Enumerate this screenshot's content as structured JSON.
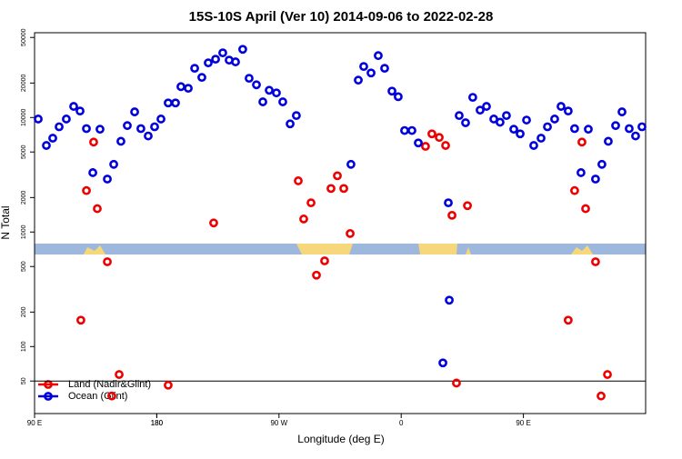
{
  "chart_data": {
    "type": "scatter",
    "title": "15S-10S April (Ver 10)   2014-09-06 to 2022-02-28",
    "xlabel": "Longitude (deg E)",
    "ylabel": "N Total",
    "xlim": [
      90,
      540
    ],
    "ylim": [
      26,
      55000
    ],
    "log_y": true,
    "xticks": [
      {
        "value": 90,
        "label": "90 E"
      },
      180,
      {
        "value": 270,
        "label": "90 W"
      },
      {
        "value": 360,
        "label": "0"
      },
      {
        "value": 450,
        "label": "90 E"
      },
      180.0001
    ],
    "yticks": [
      50,
      100,
      200,
      500,
      1000,
      2000,
      5000,
      10000,
      20000,
      50000
    ],
    "hline": 50,
    "legend": "bottom-left",
    "series": [
      {
        "name": "Land (Nadir&Glint)",
        "color": "#ee0000",
        "x": [
          124.1,
          128.2,
          133.5,
          136.2,
          143.6,
          146.9,
          152.3,
          188.4,
          221.9,
          284.2,
          288.2,
          293.6,
          297.6,
          303.6,
          308.3,
          313,
          317.7,
          322.4,
          377.9,
          382.6,
          388,
          392.7,
          397.4,
          400.7,
          408.8,
          483,
          487.7,
          493.1,
          495.8,
          503.1,
          507.2,
          511.9
        ],
        "values": [
          170,
          2300,
          6100,
          1600,
          550,
          37,
          57,
          46,
          1200,
          2800,
          1300,
          1800,
          420,
          560,
          2400,
          3100,
          2400,
          970,
          5600,
          7200,
          6700,
          5700,
          1400,
          48,
          1700,
          170,
          2300,
          6100,
          1600,
          550,
          37,
          57
        ]
      },
      {
        "name": "Ocean (Glint)",
        "color": "#0000dd",
        "x": [
          92.7,
          98.7,
          103.4,
          108.1,
          113.4,
          118.8,
          123.5,
          128.2,
          132.9,
          138.2,
          143.6,
          148.3,
          153.6,
          158.3,
          163.7,
          168.3,
          173.7,
          178.4,
          183.1,
          188.4,
          193.8,
          197.8,
          203.2,
          207.9,
          213.2,
          217.9,
          223.3,
          228.6,
          233.3,
          238,
          243.3,
          248,
          253.4,
          258.1,
          262.8,
          268.1,
          272.8,
          278.2,
          282.8,
          323,
          328.4,
          332.4,
          337.8,
          343.1,
          347.8,
          353.2,
          357.8,
          362.5,
          367.9,
          372.6,
          390.7,
          395.4,
          394.7,
          402.7,
          407.4,
          412.7,
          418.1,
          422.8,
          428.2,
          432.8,
          437.5,
          442.9,
          447.6,
          452.3,
          457.6,
          463,
          467.7,
          473,
          477.7,
          483,
          487.7,
          492.4,
          497.8,
          503.1,
          507.8,
          512.5,
          517.9,
          522.6,
          527.9,
          532.6,
          537.3
        ],
        "values": [
          9700,
          5700,
          6600,
          8300,
          9700,
          12500,
          11400,
          8000,
          3300,
          7900,
          2900,
          3900,
          6200,
          8500,
          11200,
          8000,
          6900,
          8300,
          9700,
          13400,
          13400,
          18600,
          18000,
          26900,
          22400,
          30000,
          32300,
          36700,
          31700,
          30600,
          39400,
          22000,
          19300,
          13700,
          17300,
          16400,
          13700,
          8800,
          10400,
          3900,
          21200,
          27900,
          24500,
          34700,
          26900,
          17000,
          15200,
          7700,
          7700,
          6000,
          72,
          254,
          1800,
          10400,
          9000,
          15000,
          11600,
          12500,
          9700,
          9100,
          10400,
          7900,
          7200,
          9500,
          5700,
          6600,
          8300,
          9700,
          12500,
          11400,
          8000,
          3300,
          7900,
          2900,
          3900,
          6200,
          8500,
          11200,
          8000,
          6900,
          8300
        ]
      }
    ]
  }
}
